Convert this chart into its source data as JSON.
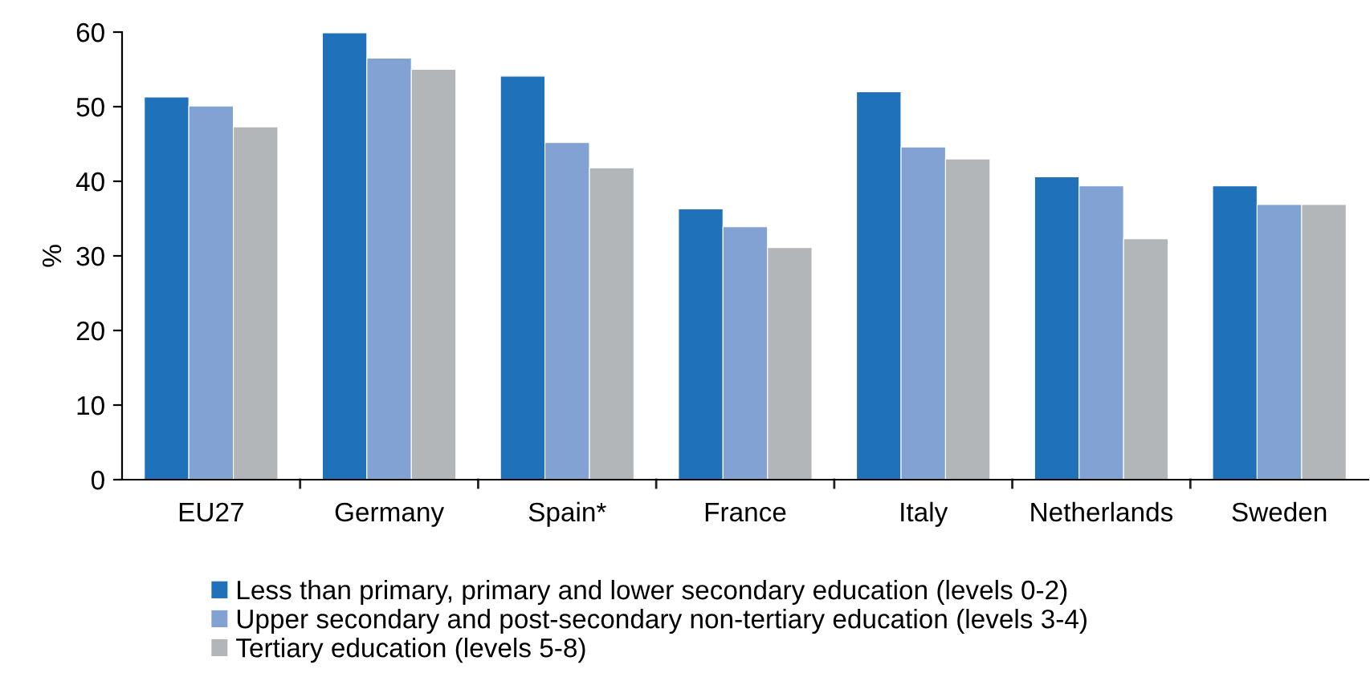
{
  "chart_data": {
    "type": "bar",
    "ylabel": "%",
    "categories": [
      "EU27",
      "Germany",
      "Spain*",
      "France",
      "Italy",
      "Netherlands",
      "Sweden"
    ],
    "series": [
      {
        "name": "Less than primary, primary and lower secondary education (levels 0-2)",
        "color": "#1f71ba",
        "values": [
          51.3,
          59.9,
          54.1,
          36.3,
          52.0,
          40.6,
          39.4
        ]
      },
      {
        "name": "Upper secondary and post-secondary non-tertiary education (levels 3-4)",
        "color": "#82a2d3",
        "values": [
          50.1,
          56.5,
          45.2,
          33.9,
          44.6,
          39.4,
          36.9
        ]
      },
      {
        "name": "Tertiary education (levels 5-8)",
        "color": "#b3b6b9",
        "values": [
          47.3,
          55.0,
          41.8,
          31.1,
          43.0,
          32.3,
          36.9
        ]
      }
    ],
    "ylim": [
      0,
      60
    ],
    "yticks": [
      0,
      10,
      20,
      30,
      40,
      50,
      60
    ],
    "grid": false,
    "legend": "bottom"
  }
}
